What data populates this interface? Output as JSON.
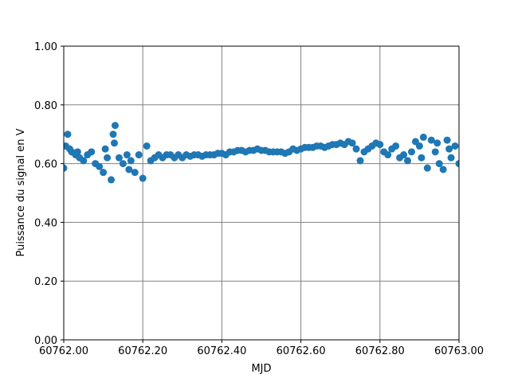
{
  "chart_data": {
    "type": "scatter",
    "xlabel": "MJD",
    "ylabel": "Puissance du signal en V",
    "color": "#1f77b4",
    "grid": true,
    "xlim": [
      60762.0,
      60763.0
    ],
    "xticks": [
      {
        "value": 60762.0,
        "label": "60762.00"
      },
      {
        "value": 60762.2,
        "label": "60762.20"
      },
      {
        "value": 60762.4,
        "label": "60762.40"
      },
      {
        "value": 60762.6,
        "label": "60762.60"
      },
      {
        "value": 60762.8,
        "label": "60762.80"
      },
      {
        "value": 60763.0,
        "label": "60763.00"
      }
    ],
    "ylim": [
      0,
      1
    ],
    "yticks": [
      {
        "value": 0,
        "label": "0.00"
      },
      {
        "value": 0.2,
        "label": "0.20"
      },
      {
        "value": 0.4,
        "label": "0.40"
      },
      {
        "value": 0.6,
        "label": "0.60"
      },
      {
        "value": 0.8,
        "label": "0.80"
      },
      {
        "value": 1,
        "label": "1.00"
      }
    ],
    "x": [
      60762.0,
      60762.01,
      60762.02,
      60762.03,
      60762.04,
      60762.05,
      60762.06,
      60762.07,
      60762.08,
      60762.09,
      60762.1,
      60762.11,
      60762.12,
      60762.13,
      60762.14,
      60762.15,
      60762.16,
      60762.17,
      60762.18,
      60762.19,
      60762.2,
      60762.21,
      60762.22,
      60762.23,
      60762.24,
      60762.25,
      60762.26,
      60762.27,
      60762.28,
      60762.29,
      60762.3,
      60762.31,
      60762.32,
      60762.33,
      60762.34,
      60762.35,
      60762.36,
      60762.37,
      60762.38,
      60762.39,
      60762.4,
      60762.41,
      60762.42,
      60762.43,
      60762.44,
      60762.45,
      60762.46,
      60762.47,
      60762.48,
      60762.49,
      60762.5,
      60762.51,
      60762.52,
      60762.53,
      60762.54,
      60762.55,
      60762.56,
      60762.57,
      60762.58,
      60762.59,
      60762.6,
      60762.61,
      60762.62,
      60762.63,
      60762.64,
      60762.65,
      60762.66,
      60762.67,
      60762.68,
      60762.69,
      60762.7,
      60762.71,
      60762.72,
      60762.73,
      60762.74,
      60762.75,
      60762.76,
      60762.77,
      60762.78,
      60762.79,
      60762.8,
      60762.81,
      60762.82,
      60762.83,
      60762.84,
      60762.85,
      60762.86,
      60762.87,
      60762.88,
      60762.89,
      60762.9,
      60762.91,
      60762.92,
      60762.93,
      60762.94,
      60762.95,
      60762.96,
      60762.97,
      60762.98,
      60762.99,
      60763.0,
      60762.005,
      60762.015,
      60762.125,
      60762.128,
      60762.945,
      60762.905,
      60762.975,
      60762.035,
      60762.105,
      60762.165
    ],
    "values": [
      0.585,
      0.7,
      0.64,
      0.63,
      0.62,
      0.61,
      0.63,
      0.64,
      0.6,
      0.59,
      0.57,
      0.62,
      0.545,
      0.73,
      0.62,
      0.6,
      0.63,
      0.61,
      0.57,
      0.63,
      0.55,
      0.66,
      0.61,
      0.62,
      0.63,
      0.62,
      0.63,
      0.63,
      0.62,
      0.63,
      0.62,
      0.63,
      0.625,
      0.63,
      0.63,
      0.625,
      0.63,
      0.63,
      0.63,
      0.635,
      0.635,
      0.63,
      0.64,
      0.64,
      0.645,
      0.645,
      0.64,
      0.645,
      0.645,
      0.65,
      0.645,
      0.645,
      0.64,
      0.64,
      0.64,
      0.64,
      0.635,
      0.64,
      0.65,
      0.645,
      0.65,
      0.655,
      0.655,
      0.655,
      0.66,
      0.66,
      0.655,
      0.66,
      0.665,
      0.665,
      0.67,
      0.665,
      0.675,
      0.67,
      0.65,
      0.61,
      0.64,
      0.65,
      0.66,
      0.67,
      0.665,
      0.64,
      0.63,
      0.65,
      0.66,
      0.62,
      0.63,
      0.61,
      0.64,
      0.675,
      0.66,
      0.69,
      0.585,
      0.68,
      0.64,
      0.6,
      0.58,
      0.68,
      0.62,
      0.66,
      0.6,
      0.66,
      0.65,
      0.7,
      0.67,
      0.67,
      0.62,
      0.65,
      0.64,
      0.65,
      0.58
    ]
  }
}
